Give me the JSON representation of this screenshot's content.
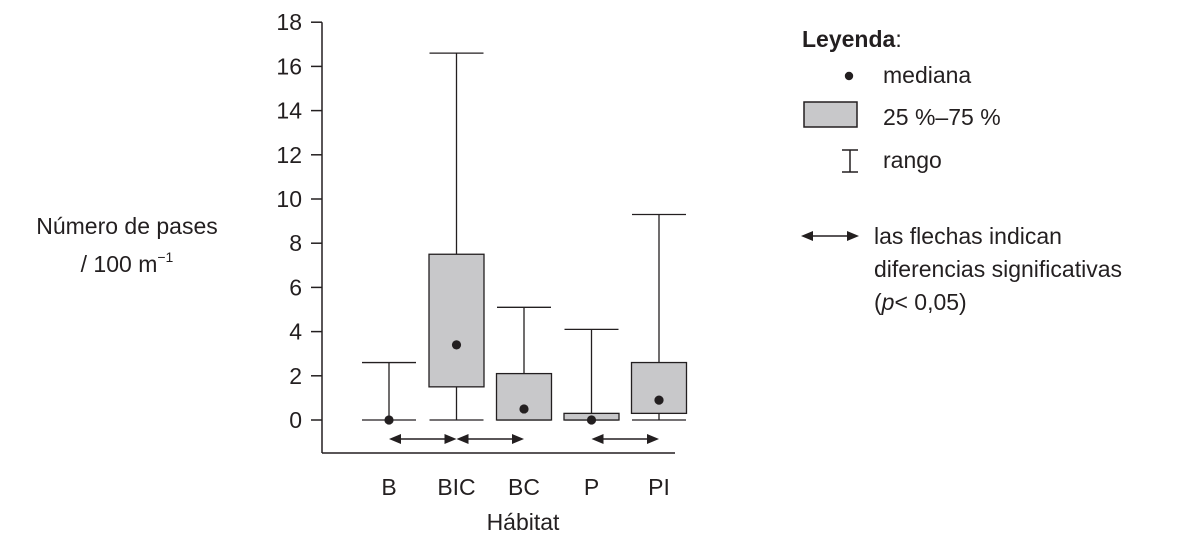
{
  "chart_data": {
    "type": "box",
    "xlabel": "Hábitat",
    "ylabel_line1": "Número de pases",
    "ylabel_line2_prefix": "/ 100 m",
    "ylabel_line2_sup": "−1",
    "ylim": [
      -1.6,
      18
    ],
    "yticks": [
      0,
      2,
      4,
      6,
      8,
      10,
      12,
      14,
      16,
      18
    ],
    "categories": [
      "B",
      "BIC",
      "BC",
      "P",
      "PI"
    ],
    "boxes": [
      {
        "category": "B",
        "min": 0,
        "q1": 0,
        "median": 0,
        "q3": 0,
        "max": 2.6
      },
      {
        "category": "BIC",
        "min": 0,
        "q1": 1.5,
        "median": 3.4,
        "q3": 7.5,
        "max": 16.6
      },
      {
        "category": "BC",
        "min": 0,
        "q1": 0,
        "median": 0.5,
        "q3": 2.1,
        "max": 5.1
      },
      {
        "category": "P",
        "min": 0,
        "q1": 0,
        "median": 0,
        "q3": 0.3,
        "max": 4.1
      },
      {
        "category": "PI",
        "min": 0,
        "q1": 0.3,
        "median": 0.9,
        "q3": 2.6,
        "max": 9.3
      }
    ],
    "arrows": [
      {
        "from": "B",
        "to": "BIC"
      },
      {
        "from": "BIC",
        "to": "BC"
      },
      {
        "from": "P",
        "to": "PI"
      }
    ],
    "legend": {
      "title": "Leyenda",
      "title_suffix": ":",
      "median": "mediana",
      "box": "25 %–75 %",
      "range": "rango",
      "arrow_line1": "las flechas indican",
      "arrow_line2": "diferencias significativas",
      "arrow_line3_open": "(",
      "arrow_line3_p": "p",
      "arrow_line3_rest": "< 0,05)"
    },
    "colors": {
      "box_fill": "#c8c8ca",
      "ink": "#231f20"
    },
    "grid": false,
    "legend_position": "right"
  }
}
